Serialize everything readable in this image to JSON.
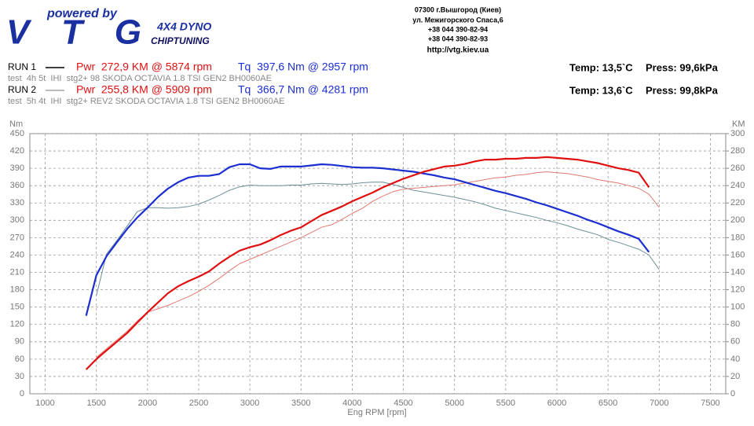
{
  "header": {
    "tagline": "powered by",
    "logo": "VTG",
    "dyno": "4X4 DYNO",
    "chiptuning": "CHIPTUNING",
    "address": [
      "07300 г.Вышгород (Киев)",
      "ул. Межигорского Спаса,6",
      "+38 044 390-82-94",
      "+38 044 390-82-93"
    ],
    "url": "http://vtg.kiev.ua"
  },
  "runs": [
    {
      "label": "RUN 1",
      "pwr": "Pwr  272,9 KM @ 5874 rpm",
      "tq": "Tq  397,6 Nm @ 2957 rpm",
      "desc": "test  4h 5t  IHI  stg2+ 98 SKODA OCTAVIA 1.8 TSI GEN2 BH0060AE",
      "temp": "Temp: 13,5`C",
      "press": "Press: 99,6kPa"
    },
    {
      "label": "RUN 2",
      "pwr": "Pwr  255,8 KM @ 5909 rpm",
      "tq": "Tq  366,7 Nm @ 4281 rpm",
      "desc": "test  5h 4t  IHI  stg2+ REV2 SKODA OCTAVIA 1.8 TSI GEN2 BH0060AE",
      "temp": "Temp: 13,6`C",
      "press": "Press: 99,8kPa"
    }
  ],
  "chart_data": {
    "type": "line",
    "ylabel": "Nm",
    "y2label": "KM",
    "xlabel": "Eng RPM [rpm]",
    "grid": true,
    "x": [
      1400,
      1500,
      1600,
      1700,
      1800,
      1900,
      2000,
      2100,
      2200,
      2300,
      2400,
      2500,
      2600,
      2700,
      2800,
      2900,
      3000,
      3100,
      3200,
      3300,
      3400,
      3500,
      3600,
      3700,
      3800,
      3900,
      4000,
      4100,
      4200,
      4300,
      4400,
      4500,
      4600,
      4700,
      4800,
      4900,
      5000,
      5100,
      5200,
      5300,
      5400,
      5500,
      5600,
      5700,
      5800,
      5900,
      6000,
      6100,
      6200,
      6300,
      6400,
      6500,
      6600,
      6700,
      6800,
      6900,
      7000
    ],
    "xlim": [
      850,
      7650
    ],
    "xticks": [
      1000,
      1500,
      2000,
      2500,
      3000,
      3500,
      4000,
      4500,
      5000,
      5500,
      6000,
      6500,
      7000,
      7500
    ],
    "ylim": [
      0,
      450
    ],
    "yticks": [
      0,
      30,
      60,
      90,
      120,
      150,
      180,
      210,
      240,
      270,
      300,
      330,
      360,
      390,
      420,
      450
    ],
    "y2lim": [
      0,
      300
    ],
    "y2ticks": [
      0,
      20,
      40,
      60,
      80,
      100,
      120,
      140,
      160,
      180,
      200,
      220,
      240,
      260,
      280,
      300
    ],
    "series": [
      {
        "name": "RUN 1",
        "color": "#1c2fd0",
        "width": 2.2,
        "values": [
          135,
          205,
          238,
          262,
          285,
          305,
          322,
          340,
          355,
          366,
          374,
          377,
          377,
          380,
          392,
          397,
          397,
          390,
          389,
          393,
          393,
          393,
          395,
          397,
          396,
          394,
          392,
          391,
          391,
          390,
          388,
          386,
          384,
          381,
          378,
          374,
          371,
          366,
          361,
          356,
          351,
          347,
          342,
          337,
          331,
          326,
          320,
          314,
          308,
          301,
          295,
          288,
          281,
          275,
          268,
          245,
          null
        ]
      },
      {
        "color": "#e01010",
        "width": 2.2,
        "axis": "y2",
        "values": [
          28,
          40,
          50,
          60,
          70,
          82,
          94,
          105,
          116,
          124,
          130,
          135,
          141,
          150,
          158,
          165,
          169,
          172,
          177,
          183,
          188,
          192,
          199,
          206,
          211,
          216,
          222,
          227,
          232,
          238,
          243,
          248,
          252,
          256,
          259,
          262,
          263,
          265,
          268,
          270,
          270,
          271,
          271,
          272,
          272,
          273,
          272,
          271,
          270,
          268,
          266,
          263,
          260,
          258,
          255,
          238,
          null
        ]
      },
      {
        "name": "RUN 2",
        "color": "#6e8f96",
        "width": 1,
        "values": [
          null,
          170,
          242,
          265,
          290,
          315,
          322,
          322,
          321,
          322,
          324,
          328,
          335,
          343,
          352,
          358,
          361,
          360,
          360,
          360,
          361,
          361,
          363,
          364,
          363,
          362,
          363,
          365,
          366,
          366,
          362,
          357,
          352,
          349,
          346,
          343,
          340,
          336,
          332,
          327,
          321,
          317,
          313,
          309,
          305,
          300,
          296,
          291,
          285,
          280,
          275,
          267,
          262,
          256,
          250,
          240,
          215
        ]
      },
      {
        "color": "#e07a70",
        "width": 1,
        "axis": "y2",
        "values": [
          null,
          42,
          52,
          62,
          72,
          84,
          94,
          98,
          102,
          107,
          112,
          118,
          125,
          133,
          142,
          150,
          155,
          160,
          165,
          170,
          175,
          180,
          186,
          192,
          195,
          201,
          208,
          214,
          222,
          228,
          233,
          236,
          237,
          238,
          239,
          240,
          241,
          243,
          245,
          247,
          249,
          250,
          252,
          253,
          255,
          256,
          255,
          254,
          252,
          250,
          247,
          245,
          243,
          240,
          237,
          230,
          215
        ]
      }
    ]
  }
}
